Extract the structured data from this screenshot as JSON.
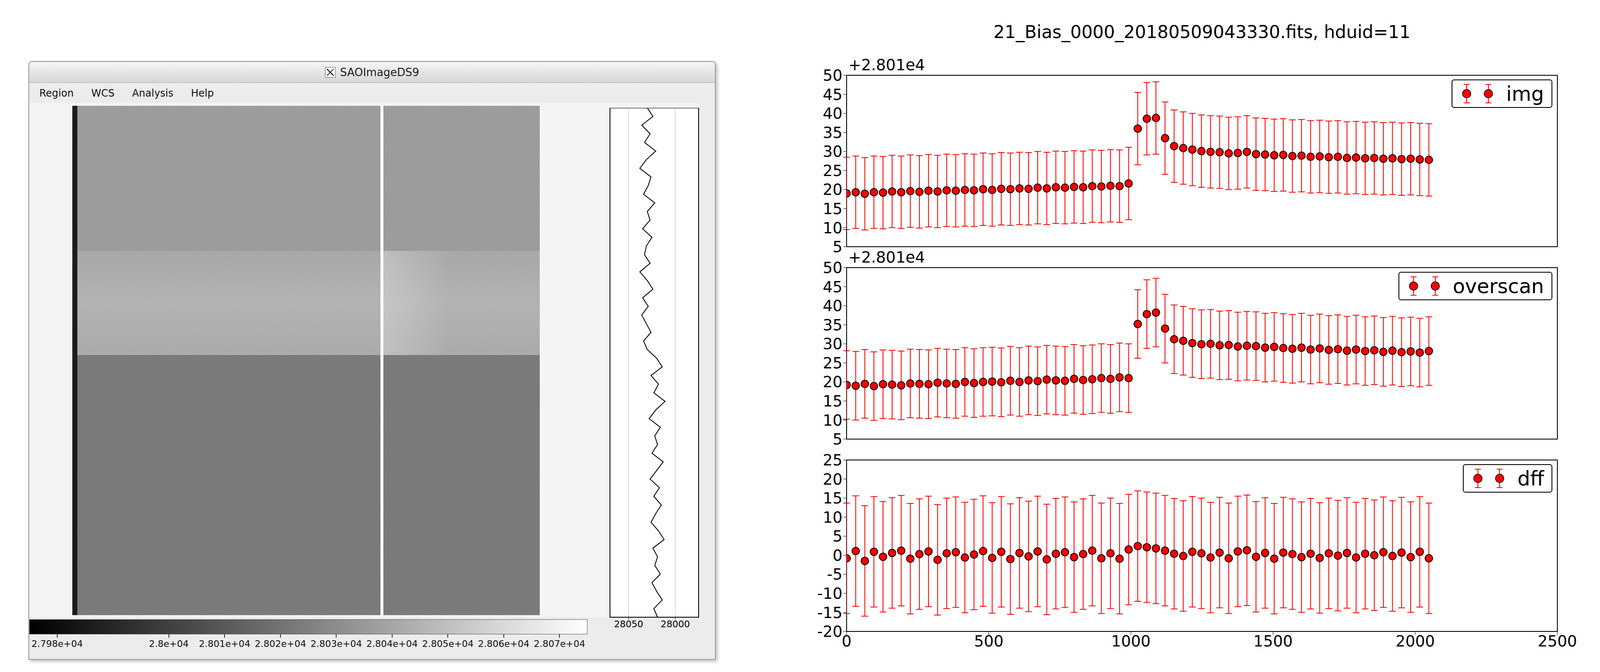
{
  "ds9": {
    "window_title": "SAOImageDS9",
    "menu": [
      "Region",
      "WCS",
      "Analysis",
      "Help"
    ],
    "colorbar": {
      "range": [
        27975,
        28075
      ],
      "ticks": [
        {
          "value": 27980,
          "label": "2.798e+04"
        },
        {
          "value": 28000,
          "label": "2.8e+04"
        },
        {
          "value": 28010,
          "label": "2.801e+04"
        },
        {
          "value": 28020,
          "label": "2.802e+04"
        },
        {
          "value": 28030,
          "label": "2.803e+04"
        },
        {
          "value": 28040,
          "label": "2.804e+04"
        },
        {
          "value": 28050,
          "label": "2.805e+04"
        },
        {
          "value": 28060,
          "label": "2.806e+04"
        },
        {
          "value": 28070,
          "label": "2.807e+04"
        }
      ]
    },
    "profile": {
      "type": "line",
      "xlim": [
        28070,
        27975
      ],
      "xticks": [
        28050,
        28000
      ],
      "grid": true,
      "color": "#000000",
      "values": [
        28030,
        28024,
        28036,
        28027,
        28033,
        28021,
        28031,
        28038,
        28026,
        28029,
        28034,
        28022,
        28030,
        28027,
        28035,
        28025,
        28031,
        28033,
        28027,
        28038,
        28030,
        28024,
        28035,
        28029,
        28036,
        28031,
        28026,
        28034,
        28030,
        28020,
        28014,
        28026,
        28018,
        28023,
        28011,
        28021,
        28028,
        28016,
        28022,
        28019,
        28025,
        28013,
        28020,
        28027,
        28017,
        28023,
        28015,
        28021,
        28026,
        28018,
        28012,
        28024,
        28019,
        28022,
        28016,
        28025,
        28020,
        28014,
        28023,
        28019
      ]
    }
  },
  "chart_data": [
    {
      "type": "scatter",
      "title": "21_Bias_0000_20180509043330.fits, hduid=11",
      "offset_label": "+2.801e4",
      "marker": "o",
      "legend": "upper right",
      "tick_labels": "y",
      "xlim": [
        0,
        2500
      ],
      "xticks": [
        0,
        500,
        1000,
        1500,
        2000,
        2500
      ],
      "ylim": [
        5,
        50
      ],
      "yticks": [
        5,
        10,
        15,
        20,
        25,
        30,
        35,
        40,
        45,
        50
      ],
      "x": [
        0,
        32,
        64,
        96,
        128,
        160,
        192,
        224,
        256,
        288,
        320,
        352,
        384,
        416,
        448,
        480,
        512,
        544,
        576,
        608,
        640,
        672,
        704,
        736,
        768,
        800,
        832,
        864,
        896,
        928,
        960,
        992,
        1024,
        1056,
        1088,
        1120,
        1152,
        1184,
        1216,
        1248,
        1280,
        1312,
        1344,
        1376,
        1408,
        1440,
        1472,
        1504,
        1536,
        1568,
        1600,
        1632,
        1664,
        1696,
        1728,
        1760,
        1792,
        1824,
        1856,
        1888,
        1920,
        1952,
        1984,
        2016,
        2048
      ],
      "series": [
        {
          "name": "img",
          "color": "#ff0000",
          "error": 9.5,
          "values": [
            19.0,
            19.3,
            18.9,
            19.3,
            19.2,
            19.5,
            19.3,
            19.6,
            19.4,
            19.7,
            19.5,
            19.8,
            19.7,
            19.9,
            19.8,
            20.1,
            19.9,
            20.2,
            20.1,
            20.3,
            20.2,
            20.5,
            20.3,
            20.6,
            20.5,
            20.7,
            20.6,
            20.9,
            20.8,
            21.0,
            20.9,
            21.6,
            36.0,
            38.6,
            38.8,
            33.5,
            31.4,
            30.9,
            30.5,
            30.1,
            29.9,
            29.8,
            29.5,
            29.6,
            29.9,
            29.3,
            29.2,
            29.0,
            29.1,
            28.8,
            28.9,
            28.6,
            28.7,
            28.5,
            28.6,
            28.3,
            28.4,
            28.2,
            28.3,
            28.1,
            28.2,
            28.0,
            28.1,
            27.9,
            27.8
          ]
        }
      ]
    },
    {
      "type": "scatter",
      "offset_label": "+2.801e4",
      "marker": "o",
      "legend": "upper right",
      "tick_labels": "y",
      "xlim": [
        0,
        2500
      ],
      "xticks": [
        0,
        500,
        1000,
        1500,
        2000,
        2500
      ],
      "ylim": [
        5,
        50
      ],
      "yticks": [
        5,
        10,
        15,
        20,
        25,
        30,
        35,
        40,
        45,
        50
      ],
      "x": [
        0,
        32,
        64,
        96,
        128,
        160,
        192,
        224,
        256,
        288,
        320,
        352,
        384,
        416,
        448,
        480,
        512,
        544,
        576,
        608,
        640,
        672,
        704,
        736,
        768,
        800,
        832,
        864,
        896,
        928,
        960,
        992,
        1024,
        1056,
        1088,
        1120,
        1152,
        1184,
        1216,
        1248,
        1280,
        1312,
        1344,
        1376,
        1408,
        1440,
        1472,
        1504,
        1536,
        1568,
        1600,
        1632,
        1664,
        1696,
        1728,
        1760,
        1792,
        1824,
        1856,
        1888,
        1920,
        1952,
        1984,
        2016,
        2048
      ],
      "series": [
        {
          "name": "overscan",
          "color": "#ff0000",
          "error": 9,
          "values": [
            19.2,
            19.0,
            19.5,
            18.9,
            19.4,
            19.3,
            19.1,
            19.6,
            19.5,
            19.4,
            19.8,
            19.6,
            19.5,
            20.0,
            19.7,
            20.0,
            20.1,
            19.9,
            20.3,
            20.0,
            20.4,
            20.2,
            20.6,
            20.4,
            20.3,
            20.8,
            20.5,
            20.7,
            21.0,
            20.8,
            21.2,
            21.0,
            35.2,
            37.8,
            38.2,
            34.0,
            31.2,
            30.8,
            30.2,
            29.9,
            30.0,
            29.6,
            29.7,
            29.3,
            29.5,
            29.4,
            29.0,
            29.2,
            28.9,
            28.7,
            29.0,
            28.5,
            28.8,
            28.4,
            28.6,
            28.2,
            28.5,
            28.1,
            28.3,
            27.9,
            28.2,
            27.8,
            28.0,
            27.7,
            28.1
          ]
        }
      ]
    },
    {
      "type": "scatter",
      "marker": "o",
      "legend": "upper right",
      "xlim": [
        0,
        2500
      ],
      "xticks": [
        0,
        500,
        1000,
        1500,
        2000,
        2500
      ],
      "ylim": [
        -20,
        25
      ],
      "yticks": [
        -20,
        -15,
        -10,
        -5,
        0,
        5,
        10,
        15,
        20,
        25
      ],
      "x": [
        0,
        32,
        64,
        96,
        128,
        160,
        192,
        224,
        256,
        288,
        320,
        352,
        384,
        416,
        448,
        480,
        512,
        544,
        576,
        608,
        640,
        672,
        704,
        736,
        768,
        800,
        832,
        864,
        896,
        928,
        960,
        992,
        1024,
        1056,
        1088,
        1120,
        1152,
        1184,
        1216,
        1248,
        1280,
        1312,
        1344,
        1376,
        1408,
        1440,
        1472,
        1504,
        1536,
        1568,
        1600,
        1632,
        1664,
        1696,
        1728,
        1760,
        1792,
        1824,
        1856,
        1888,
        1920,
        1952,
        1984,
        2016,
        2048
      ],
      "series": [
        {
          "name": "dff",
          "color": "#ff0000",
          "error": 14.5,
          "values": [
            -0.8,
            1.1,
            -1.5,
            0.9,
            -0.4,
            0.6,
            1.2,
            -0.9,
            0.3,
            1.0,
            -1.2,
            0.5,
            0.8,
            -0.6,
            0.2,
            1.1,
            -0.7,
            0.9,
            -1.0,
            0.6,
            -0.3,
            1.0,
            -1.1,
            0.4,
            0.8,
            -0.5,
            0.3,
            1.2,
            -0.8,
            0.5,
            -0.9,
            1.5,
            2.4,
            2.1,
            1.8,
            1.2,
            0.4,
            -0.2,
            0.9,
            0.5,
            -0.6,
            0.7,
            -0.8,
            1.0,
            1.3,
            -0.4,
            0.6,
            -0.9,
            0.7,
            0.3,
            -0.5,
            0.4,
            -0.7,
            0.5,
            -0.1,
            0.6,
            -0.6,
            0.4,
            0.0,
            0.8,
            -0.2,
            0.7,
            -0.5,
            0.9,
            -0.8
          ]
        }
      ]
    }
  ]
}
